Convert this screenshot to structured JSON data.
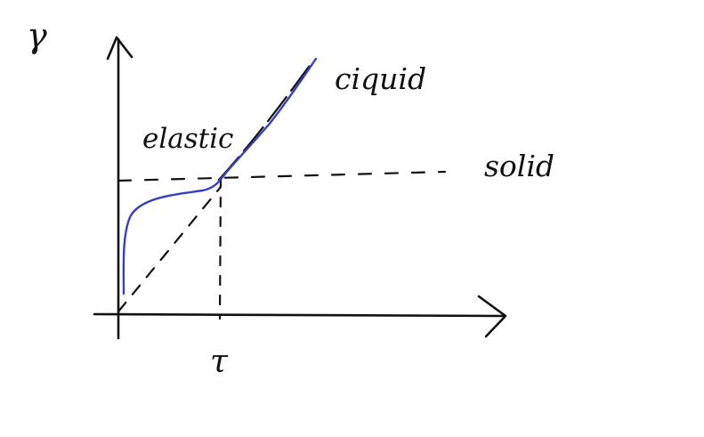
{
  "labels": {
    "y_axis": "γ",
    "x_axis_tick": "τ",
    "curve_segment": "elastic",
    "liquid_line": "ciquid",
    "solid_line": "solid"
  },
  "colors": {
    "ink": "#111111",
    "curve": "#3a3fc2",
    "background": "#ffffff"
  }
}
